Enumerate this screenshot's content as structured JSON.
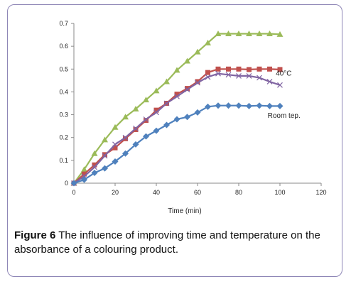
{
  "caption": {
    "label": "Figure 6",
    "text": "The influence of improving time and temperature on the absorbance of a colouring product."
  },
  "chart_data": {
    "type": "line",
    "title": "",
    "xlabel": "Time (min)",
    "ylabel": "",
    "xlim": [
      0,
      120
    ],
    "ylim": [
      0,
      0.7
    ],
    "xticks": [
      0,
      20,
      40,
      60,
      80,
      100,
      120
    ],
    "yticks": [
      0,
      0.1,
      0.2,
      0.3,
      0.4,
      0.5,
      0.6,
      0.7
    ],
    "grid": false,
    "legend": "none",
    "series": [
      {
        "marker": "triangle",
        "color": "#9bbb59",
        "x": [
          0,
          5,
          10,
          15,
          20,
          25,
          30,
          35,
          40,
          45,
          50,
          55,
          60,
          65,
          70,
          75,
          80,
          85,
          90,
          95,
          100
        ],
        "y": [
          0,
          0.06,
          0.13,
          0.19,
          0.245,
          0.29,
          0.325,
          0.365,
          0.405,
          0.445,
          0.495,
          0.535,
          0.575,
          0.615,
          0.655,
          0.655,
          0.655,
          0.655,
          0.655,
          0.655,
          0.652
        ]
      },
      {
        "marker": "square",
        "color": "#c0504d",
        "x": [
          0,
          5,
          10,
          15,
          20,
          25,
          30,
          35,
          40,
          45,
          50,
          55,
          60,
          65,
          70,
          75,
          80,
          85,
          90,
          95,
          100
        ],
        "y": [
          0,
          0.04,
          0.08,
          0.125,
          0.155,
          0.195,
          0.235,
          0.275,
          0.32,
          0.35,
          0.39,
          0.415,
          0.445,
          0.485,
          0.5,
          0.5,
          0.5,
          0.498,
          0.5,
          0.5,
          0.498
        ]
      },
      {
        "marker": "x",
        "color": "#8064a2",
        "x": [
          0,
          5,
          10,
          15,
          20,
          25,
          30,
          35,
          40,
          45,
          50,
          55,
          60,
          65,
          70,
          75,
          80,
          85,
          90,
          95,
          100
        ],
        "y": [
          0,
          0.03,
          0.07,
          0.12,
          0.17,
          0.2,
          0.24,
          0.28,
          0.31,
          0.35,
          0.38,
          0.41,
          0.44,
          0.465,
          0.48,
          0.475,
          0.47,
          0.47,
          0.462,
          0.445,
          0.43
        ]
      },
      {
        "marker": "diamond",
        "color": "#4f81bd",
        "x": [
          0,
          5,
          10,
          15,
          20,
          25,
          30,
          35,
          40,
          45,
          50,
          55,
          60,
          65,
          70,
          75,
          80,
          85,
          90,
          95,
          100
        ],
        "y": [
          0,
          0.015,
          0.045,
          0.065,
          0.095,
          0.13,
          0.17,
          0.205,
          0.23,
          0.255,
          0.28,
          0.29,
          0.31,
          0.335,
          0.34,
          0.34,
          0.34,
          0.338,
          0.34,
          0.338,
          0.338
        ]
      }
    ],
    "annotations": [
      {
        "text": "40°C",
        "x": 98,
        "y": 0.48
      },
      {
        "text": "Room tep.",
        "x": 94,
        "y": 0.295
      }
    ]
  }
}
